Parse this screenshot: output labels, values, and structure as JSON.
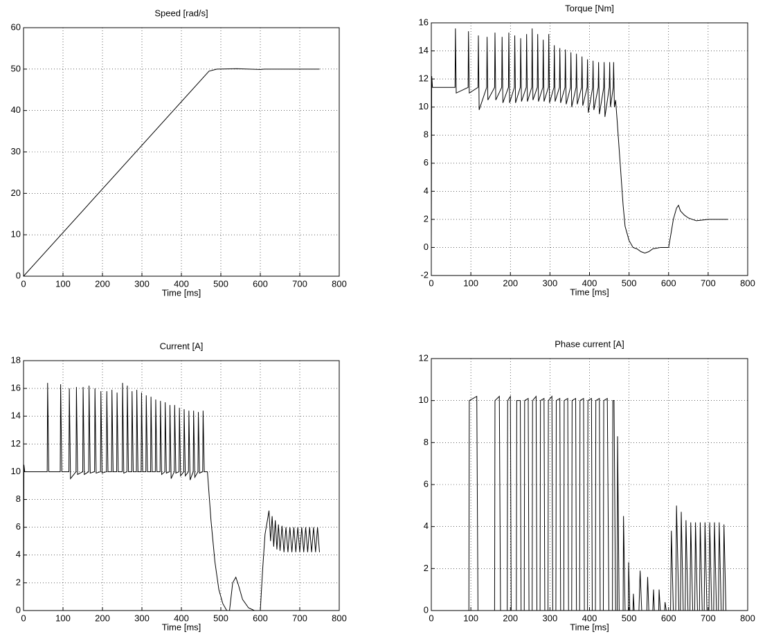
{
  "chart_data": [
    {
      "type": "line",
      "title": "Speed [rad/s]",
      "xlabel": "Time [ms]",
      "x": [
        0,
        470,
        490,
        540,
        600,
        610,
        750
      ],
      "series": [
        {
          "color": "#000000",
          "values": [
            0,
            49.5,
            50,
            50.1,
            49.9,
            50,
            50
          ]
        }
      ],
      "xlim": [
        0,
        800
      ],
      "xticks": [
        0,
        100,
        200,
        300,
        400,
        500,
        600,
        700,
        800
      ],
      "ylim": [
        0,
        60
      ],
      "yticks": [
        0,
        10,
        20,
        30,
        40,
        50,
        60
      ],
      "grid": true
    },
    {
      "type": "line",
      "title": "Torque [Nm]",
      "xlabel": "Time [ms]",
      "x": [
        0,
        1,
        3,
        60,
        61,
        63,
        93,
        94,
        96,
        118,
        119,
        121,
        140,
        141,
        143,
        160,
        161,
        163,
        178,
        179,
        181,
        195,
        196,
        198,
        210,
        211,
        213,
        225,
        226,
        228,
        240,
        241,
        243,
        254,
        255,
        257,
        268,
        269,
        271,
        282,
        283,
        285,
        296,
        297,
        299,
        310,
        311,
        313,
        324,
        325,
        327,
        338,
        339,
        341,
        352,
        353,
        355,
        366,
        367,
        369,
        380,
        381,
        383,
        394,
        395,
        397,
        408,
        409,
        411,
        422,
        423,
        425,
        436,
        437,
        439,
        450,
        451,
        453,
        460,
        461,
        463,
        466,
        470,
        475,
        480,
        485,
        490,
        500,
        510,
        520,
        530,
        540,
        550,
        560,
        580,
        600,
        605,
        612,
        620,
        625,
        630,
        640,
        650,
        670,
        700,
        750
      ],
      "series": [
        {
          "color": "#000000",
          "values": [
            0,
            12.2,
            11.4,
            11.4,
            15.6,
            11.0,
            11.4,
            15.4,
            11.0,
            11.4,
            15.1,
            9.8,
            11.4,
            15.0,
            10.5,
            11.4,
            15.3,
            10.5,
            11.4,
            15.0,
            10.3,
            11.4,
            15.3,
            10.3,
            11.4,
            15.1,
            10.3,
            11.4,
            14.9,
            10.4,
            11.4,
            15.2,
            10.4,
            11.4,
            15.6,
            10.5,
            11.4,
            15.2,
            10.4,
            11.4,
            14.8,
            10.4,
            11.4,
            15.2,
            10.3,
            11.4,
            14.4,
            10.4,
            11.4,
            14.2,
            10.3,
            11.4,
            14.1,
            10.2,
            11.4,
            13.9,
            10.0,
            11.4,
            13.8,
            10.2,
            11.4,
            13.6,
            10.1,
            11.4,
            13.4,
            9.6,
            11.4,
            13.3,
            9.8,
            11.4,
            13.2,
            9.5,
            11.4,
            13.2,
            9.3,
            11.4,
            13.2,
            10.0,
            11.4,
            13.2,
            10.0,
            10.5,
            9,
            7,
            5,
            3,
            1.5,
            0.5,
            0,
            -0.1,
            -0.3,
            -0.4,
            -0.3,
            -0.1,
            0,
            0,
            0.8,
            2.0,
            2.8,
            3.0,
            2.6,
            2.3,
            2.1,
            1.9,
            2.0,
            2.0
          ]
        }
      ],
      "xlim": [
        0,
        800
      ],
      "xticks": [
        0,
        100,
        200,
        300,
        400,
        500,
        600,
        700,
        800
      ],
      "ylim": [
        -2,
        16
      ],
      "yticks": [
        -2,
        0,
        2,
        4,
        6,
        8,
        10,
        12,
        14,
        16
      ],
      "grid": true
    },
    {
      "type": "line",
      "title": "Current [A]",
      "xlabel": "Time [ms]",
      "x": [
        0,
        1,
        3,
        60,
        61,
        64,
        93,
        94,
        97,
        115,
        116,
        119,
        133,
        134,
        137,
        150,
        151,
        154,
        165,
        166,
        169,
        180,
        181,
        184,
        195,
        196,
        199,
        210,
        211,
        214,
        223,
        224,
        227,
        236,
        237,
        240,
        250,
        251,
        254,
        262,
        263,
        266,
        274,
        275,
        278,
        286,
        287,
        290,
        298,
        299,
        302,
        310,
        311,
        314,
        322,
        323,
        326,
        334,
        335,
        338,
        346,
        347,
        350,
        358,
        359,
        362,
        370,
        371,
        374,
        382,
        383,
        386,
        394,
        395,
        398,
        406,
        407,
        410,
        418,
        419,
        422,
        430,
        431,
        434,
        442,
        443,
        446,
        454,
        455,
        458,
        466,
        475,
        485,
        495,
        505,
        515,
        522,
        530,
        538,
        545,
        555,
        570,
        585,
        600,
        606,
        612,
        618,
        622,
        626,
        630,
        634,
        638,
        642,
        646,
        650,
        655,
        660,
        665,
        670,
        675,
        680,
        685,
        690,
        695,
        700,
        705,
        710,
        715,
        720,
        725,
        730,
        735,
        740,
        745,
        750
      ],
      "series": [
        {
          "color": "#000000",
          "values": [
            0,
            10.5,
            10,
            10,
            16.4,
            10,
            10,
            16.3,
            10,
            10,
            16.0,
            9.5,
            10,
            16.1,
            9.8,
            10,
            16.1,
            9.8,
            10,
            16.2,
            9.9,
            10,
            16.0,
            9.9,
            10,
            15.8,
            9.9,
            10,
            15.8,
            10,
            10,
            15.9,
            10,
            10,
            15.7,
            10,
            10,
            16.4,
            9.9,
            10,
            16.2,
            10,
            10,
            15.8,
            10,
            10,
            15.9,
            10,
            10,
            15.7,
            10,
            10,
            15.5,
            10,
            10,
            15.4,
            10,
            10,
            15.2,
            10,
            10,
            15.1,
            9.8,
            10,
            15.0,
            9.9,
            10,
            14.8,
            9.5,
            10,
            14.8,
            9.9,
            10,
            14.6,
            9.7,
            10,
            14.5,
            9.7,
            10,
            14.4,
            9.4,
            10,
            14.4,
            9.6,
            10,
            14.3,
            9.9,
            10,
            14.4,
            10,
            10,
            6.5,
            3.5,
            1.5,
            0.5,
            0,
            0,
            2,
            2.4,
            1.8,
            0.8,
            0.2,
            0,
            0,
            3,
            5.5,
            6.5,
            7.2,
            5,
            6.8,
            4.6,
            6.5,
            4.4,
            6.2,
            4.3,
            6.1,
            4.2,
            6,
            4.2,
            6,
            4.2,
            6,
            4.2,
            6,
            4.2,
            6,
            4.2,
            6,
            4.2,
            6,
            4.2,
            6,
            4.2,
            6,
            4.2
          ]
        }
      ],
      "xlim": [
        0,
        800
      ],
      "xticks": [
        0,
        100,
        200,
        300,
        400,
        500,
        600,
        700,
        800
      ],
      "ylim": [
        0,
        18
      ],
      "yticks": [
        0,
        2,
        4,
        6,
        8,
        10,
        12,
        14,
        16,
        18
      ],
      "grid": true
    },
    {
      "type": "line",
      "title": "Phase current [A]",
      "xlabel": "Time [ms]",
      "x": [
        0,
        95,
        96,
        115,
        118,
        160,
        161,
        172,
        175,
        192,
        193,
        200,
        202,
        215,
        216,
        225,
        227,
        235,
        236,
        245,
        247,
        255,
        256,
        265,
        267,
        275,
        276,
        285,
        287,
        295,
        296,
        305,
        307,
        315,
        316,
        325,
        327,
        335,
        336,
        345,
        347,
        355,
        356,
        365,
        367,
        375,
        376,
        385,
        387,
        395,
        396,
        405,
        407,
        415,
        416,
        425,
        427,
        435,
        436,
        445,
        449,
        458,
        459,
        462,
        466,
        470,
        471,
        475,
        485,
        486,
        490,
        498,
        499,
        502,
        510,
        511,
        513,
        525,
        528,
        532,
        545,
        547,
        550,
        560,
        562,
        564,
        575,
        576,
        579,
        590,
        591,
        594,
        605,
        607,
        612,
        618,
        620,
        626,
        630,
        632,
        637,
        642,
        644,
        649,
        654,
        656,
        661,
        666,
        668,
        673,
        678,
        680,
        685,
        690,
        692,
        697,
        702,
        704,
        709,
        714,
        716,
        721,
        726,
        728,
        733,
        738,
        740,
        745,
        750
      ],
      "series": [
        {
          "color": "#000000",
          "values": [
            0,
            0,
            10,
            10.2,
            0,
            0,
            10,
            10.2,
            0,
            0,
            10,
            10.2,
            0,
            0,
            10,
            10,
            0,
            0,
            10,
            10.1,
            0,
            0,
            10,
            10.2,
            0,
            0,
            10,
            10.1,
            0,
            0,
            10,
            10.2,
            0,
            0,
            10,
            10.1,
            0,
            0,
            10,
            10.1,
            0,
            0,
            10,
            10.1,
            0,
            0,
            10,
            10.1,
            0,
            0,
            10,
            10.1,
            0,
            0,
            10,
            10.1,
            0,
            0,
            10,
            10.1,
            0,
            0,
            10,
            10,
            0,
            0,
            8.3,
            0,
            0,
            4.5,
            0,
            0,
            2.3,
            0,
            0,
            0.8,
            0,
            0,
            1.9,
            0,
            0,
            1.6,
            0,
            0,
            1,
            0,
            0,
            1,
            0,
            0,
            0.4,
            0,
            0,
            3.8,
            0,
            0,
            5.0,
            0,
            0,
            4.7,
            0,
            0,
            4.3,
            0,
            0,
            4.2,
            0,
            0,
            4.2,
            0,
            0,
            4.2,
            0,
            0,
            4.2,
            0,
            0,
            4.2,
            0,
            0,
            4.2,
            0,
            0,
            4.2,
            0,
            0,
            4.1,
            0,
            0
          ]
        }
      ],
      "xlim": [
        0,
        800
      ],
      "xticks": [
        0,
        100,
        200,
        300,
        400,
        500,
        600,
        700,
        800
      ],
      "ylim": [
        0,
        12
      ],
      "yticks": [
        0,
        2,
        4,
        6,
        8,
        10,
        12
      ],
      "grid": true
    }
  ]
}
